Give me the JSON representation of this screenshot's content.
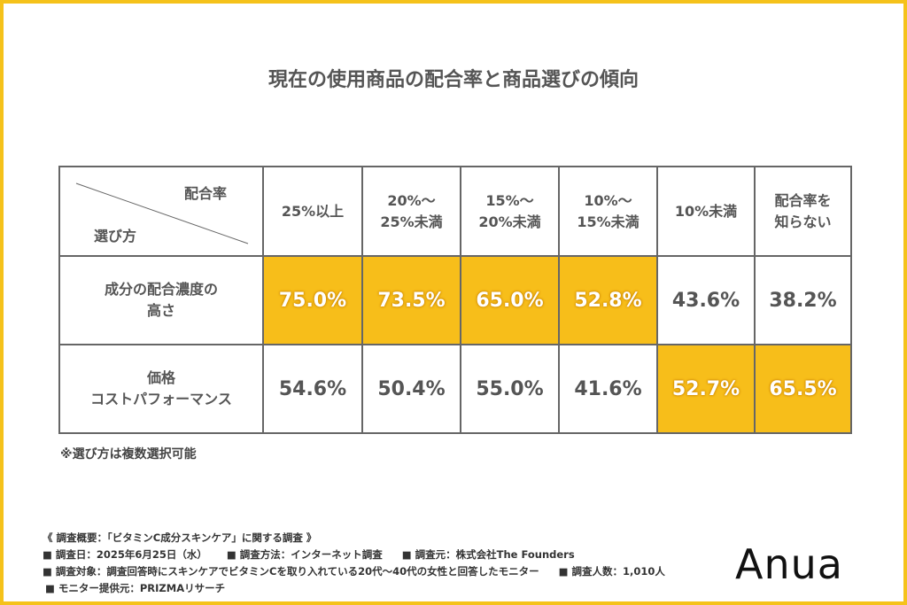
{
  "title": "現在の使用商品の配合率と商品選びの傾向",
  "table": {
    "corner": {
      "top": "配合率",
      "bottom": "選び方"
    },
    "columns": [
      "25%以上",
      "20%〜\n25%未満",
      "15%〜\n20%未満",
      "10%〜\n15%未満",
      "10%未満",
      "配合率を\n知らない"
    ],
    "rows": [
      {
        "label": "成分の配合濃度の\n高さ",
        "values": [
          "75.0%",
          "73.5%",
          "65.0%",
          "52.8%",
          "43.6%",
          "38.2%"
        ],
        "highlight": [
          true,
          true,
          true,
          true,
          false,
          false
        ]
      },
      {
        "label": "価格\nコストパフォーマンス",
        "values": [
          "54.6%",
          "50.4%",
          "55.0%",
          "41.6%",
          "52.7%",
          "65.5%"
        ],
        "highlight": [
          false,
          false,
          false,
          false,
          true,
          true
        ]
      }
    ],
    "highlight_color": "#F7BE1A"
  },
  "note": "※選び方は複数選択可能",
  "footer": {
    "heading": "《 調査概要：「ビタミンC成分スキンケア」に関する調査 》",
    "date": "■ 調査日：2025年6月25日（水）",
    "method": "■ 調査方法：インターネット調査",
    "source": "■ 調査元：株式会社The Founders",
    "target": "■ 調査対象：調査回答時にスキンケアでビタミンCを取り入れている20代〜40代の女性と回答したモニター",
    "count": "■ 調査人数：1,010人",
    "provider": "■ モニター提供元：PRIZMAリサーチ"
  },
  "logo": "Anua",
  "frame_color": "#F5C21B"
}
